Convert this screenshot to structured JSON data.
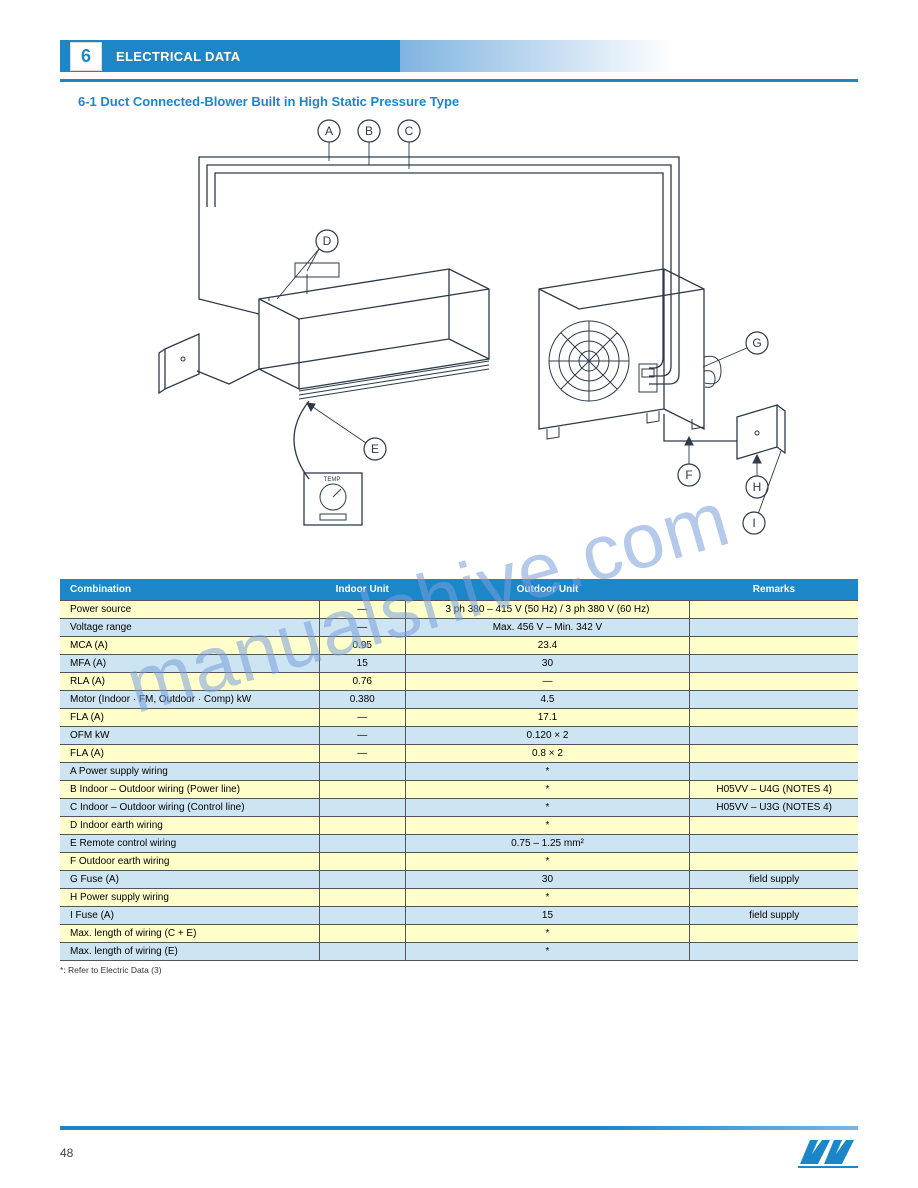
{
  "header": {
    "section_number": "6",
    "section_title": "ELECTRICAL DATA",
    "subsection": "6-1 Duct Connected-Blower Built in High Static Pressure Type"
  },
  "diagram": {
    "labels": [
      "A",
      "B",
      "C",
      "D",
      "E",
      "F",
      "G",
      "H",
      "I"
    ],
    "watermark": "manualshive.com"
  },
  "table": {
    "headers": [
      "Combination",
      "Indoor Unit",
      "Outdoor Unit",
      "Remarks"
    ],
    "rows": [
      {
        "style": "y",
        "c0": "Power source",
        "c1": "—",
        "c2": "3 ph 380 – 415 V (50 Hz) / 3 ph 380 V (60 Hz)",
        "c3": ""
      },
      {
        "style": "b",
        "c0": "Voltage range",
        "c1": "—",
        "c2": "Max. 456 V – Min. 342 V",
        "c3": ""
      },
      {
        "style": "y",
        "c0": "MCA (A)",
        "c1": "0.95",
        "c2": "23.4",
        "c3": ""
      },
      {
        "style": "b",
        "c0": "MFA (A)",
        "c1": "15",
        "c2": "30",
        "c3": ""
      },
      {
        "style": "y",
        "c0": "RLA (A)",
        "c1": "0.76",
        "c2": "—",
        "c3": ""
      },
      {
        "style": "b",
        "c0": "Motor  (Indoor · FM, Outdoor · Comp)  kW",
        "c1": "0.380",
        "c2": "4.5",
        "c3": ""
      },
      {
        "style": "y",
        "c0": "             FLA (A)",
        "c1": "—",
        "c2": "17.1",
        "c3": ""
      },
      {
        "style": "b",
        "c0": "OFM  kW",
        "c1": "—",
        "c2": "0.120 × 2",
        "c3": ""
      },
      {
        "style": "y",
        "c0": "         FLA (A)",
        "c1": "—",
        "c2": "0.8 × 2",
        "c3": ""
      },
      {
        "style": "b",
        "c0": "A  Power supply wiring",
        "c1": "",
        "c2": "*",
        "c3": ""
      },
      {
        "style": "y",
        "c0": "B  Indoor – Outdoor wiring (Power line)",
        "c1": "",
        "c2": "*",
        "c3": "H05VV – U4G  (NOTES 4)"
      },
      {
        "style": "b",
        "c0": "C  Indoor – Outdoor wiring (Control line)",
        "c1": "",
        "c2": "*",
        "c3": "H05VV – U3G  (NOTES 4)"
      },
      {
        "style": "y",
        "c0": "D  Indoor earth wiring",
        "c1": "",
        "c2": "*",
        "c3": ""
      },
      {
        "style": "b",
        "c0": "E  Remote control wiring",
        "c1": "",
        "c2": "0.75 – 1.25 mm²",
        "c3": ""
      },
      {
        "style": "y",
        "c0": "F  Outdoor earth wiring",
        "c1": "",
        "c2": "*",
        "c3": ""
      },
      {
        "style": "b",
        "c0": "G  Fuse  (A)",
        "c1": "",
        "c2": "30",
        "c3": "field supply"
      },
      {
        "style": "y",
        "c0": "H  Power supply wiring",
        "c1": "",
        "c2": "*",
        "c3": ""
      },
      {
        "style": "b",
        "c0": "I  Fuse  (A)",
        "c1": "",
        "c2": "15",
        "c3": "field supply"
      },
      {
        "style": "y",
        "c0": "Max. length of wiring (C + E)",
        "c1": "",
        "c2": "*",
        "c3": ""
      },
      {
        "style": "b",
        "c0": "Max. length of wiring (E)",
        "c1": "",
        "c2": "*",
        "c3": ""
      }
    ]
  },
  "footnote": "*: Refer to Electric Data (3)",
  "footer": {
    "page": "48",
    "logo_text": "EW"
  }
}
